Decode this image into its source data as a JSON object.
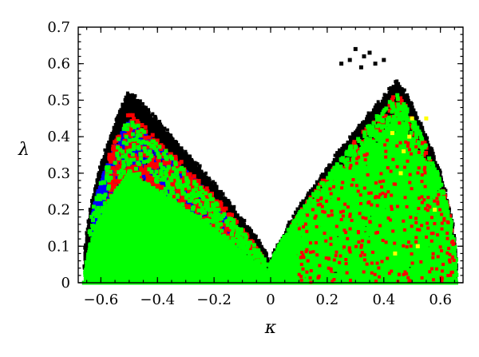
{
  "chart_data": {
    "type": "scatter",
    "title": "",
    "xlabel": "κ",
    "ylabel": "λ",
    "xlim": [
      -0.68,
      0.68
    ],
    "ylim": [
      0,
      0.7
    ],
    "grid": false,
    "legend": "none",
    "xticks": [
      -0.6,
      -0.4,
      -0.2,
      0,
      0.2,
      0.4,
      0.6
    ],
    "xtick_labels": [
      "−0.6",
      "−0.4",
      "−0.2",
      "0",
      "0.2",
      "0.4",
      "0.6"
    ],
    "yticks": [
      0,
      0.1,
      0.2,
      0.3,
      0.4,
      0.5,
      0.6,
      0.7
    ],
    "ytick_labels": [
      "0",
      "0.1",
      "0.2",
      "0.3",
      "0.4",
      "0.5",
      "0.6",
      "0.7"
    ],
    "series": [
      {
        "color": "#000000",
        "regions": [
          {
            "kappa_range": [
              -0.66,
              0.0
            ],
            "lambda_upper_peak": 0.52,
            "peak_at": -0.5
          },
          {
            "kappa_range": [
              0.0,
              0.66
            ],
            "lambda_upper_peak": 0.55,
            "peak_at": 0.45
          }
        ],
        "outliers": [
          [
            0.3,
            0.64
          ],
          [
            0.33,
            0.62
          ],
          [
            0.35,
            0.63
          ],
          [
            0.37,
            0.6
          ],
          [
            0.28,
            0.61
          ],
          [
            0.25,
            0.6
          ],
          [
            0.32,
            0.59
          ],
          [
            0.4,
            0.61
          ]
        ]
      },
      {
        "color": "#ff0000",
        "regions": [
          {
            "kappa_range": [
              -0.58,
              -0.05
            ],
            "lambda_band": [
              0.2,
              0.45
            ]
          },
          {
            "kappa_range": [
              0.1,
              0.6
            ],
            "lambda_band": [
              0.05,
              0.5
            ]
          }
        ]
      },
      {
        "color": "#0000ff",
        "regions": [
          {
            "kappa_range": [
              -0.62,
              -0.12
            ],
            "lambda_band": [
              0.15,
              0.42
            ]
          }
        ]
      },
      {
        "color": "#00ff00",
        "regions": [
          {
            "kappa_range": [
              -0.66,
              -0.02
            ],
            "lambda_band": [
              0.0,
              0.38
            ]
          },
          {
            "kappa_range": [
              0.02,
              0.66
            ],
            "lambda_band": [
              0.0,
              0.48
            ]
          }
        ]
      },
      {
        "color": "#ffff00",
        "points": [
          [
            0.47,
            0.36
          ],
          [
            0.49,
            0.4
          ],
          [
            0.55,
            0.45
          ],
          [
            0.52,
            0.1
          ],
          [
            0.44,
            0.08
          ],
          [
            0.46,
            0.3
          ],
          [
            0.58,
            0.2
          ],
          [
            0.5,
            0.45
          ],
          [
            0.43,
            0.41
          ]
        ]
      }
    ]
  }
}
